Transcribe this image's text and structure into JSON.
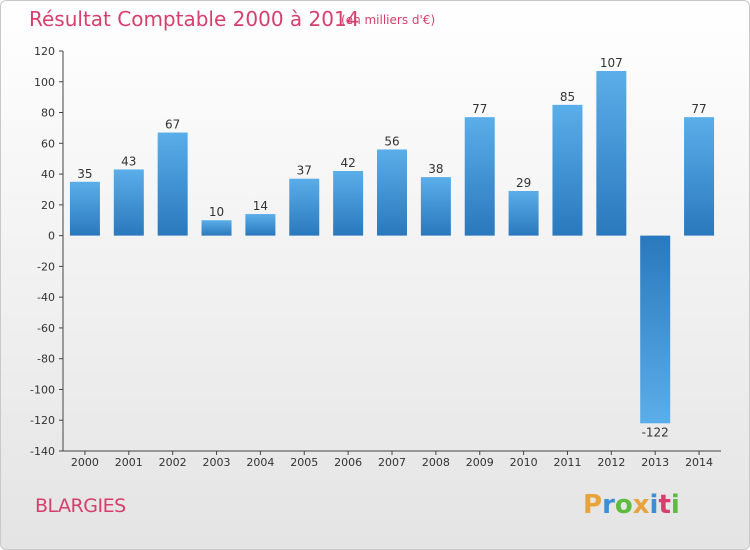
{
  "header": {
    "title": "Résultat Comptable 2000 à 2014",
    "subtitle": "(en milliers d'€)"
  },
  "footer": {
    "place": "BLARGIES",
    "logo_letters": [
      "P",
      "r",
      "o",
      "x",
      "i",
      "t",
      "i"
    ],
    "logo_colors": [
      "#e8a33b",
      "#3c8fd6",
      "#5dbb3f",
      "#e8a33b",
      "#3c8fd6",
      "#d63e6d",
      "#5dbb3f"
    ]
  },
  "colors": {
    "bar_top": "#5aaee9",
    "bar_bottom": "#2a78bd",
    "accent": "#d63e6d"
  },
  "chart_data": {
    "type": "bar",
    "title": "Résultat Comptable 2000 à 2014",
    "subtitle": "(en milliers d'€)",
    "categories": [
      "2000",
      "2001",
      "2002",
      "2003",
      "2004",
      "2005",
      "2006",
      "2007",
      "2008",
      "2009",
      "2010",
      "2011",
      "2012",
      "2013",
      "2014"
    ],
    "values": [
      35,
      43,
      67,
      10,
      14,
      37,
      42,
      56,
      38,
      77,
      29,
      85,
      107,
      -122,
      77
    ],
    "ylim": [
      -140,
      120
    ],
    "yticks": [
      -140,
      -120,
      -100,
      -80,
      -60,
      -40,
      -20,
      0,
      20,
      40,
      60,
      80,
      100,
      120
    ],
    "grid": false,
    "xlabel": "",
    "ylabel": ""
  }
}
